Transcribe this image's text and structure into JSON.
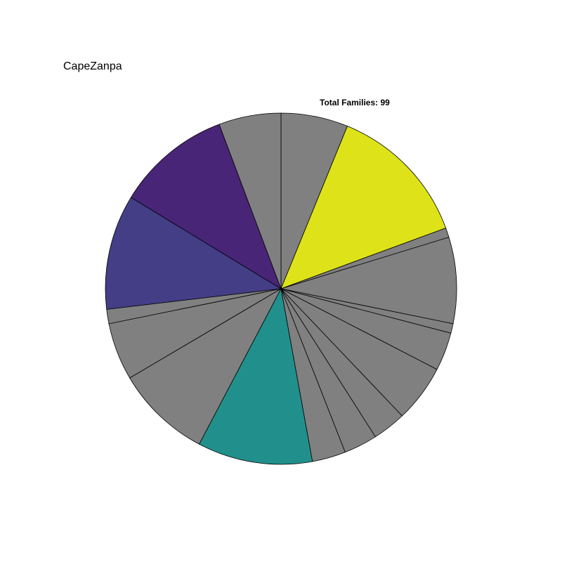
{
  "chart_data": {
    "type": "pie",
    "title": "CapeZanpa",
    "annotation": "Total Families: 99",
    "start": "12 o'clock",
    "direction": "clockwise",
    "values": [
      7,
      15,
      1,
      9,
      1,
      4,
      6,
      3.5,
      3.5,
      3.5,
      12,
      10,
      6,
      1.5,
      12,
      12,
      6.5
    ],
    "colors": [
      "#808080",
      "#dde318",
      "#808080",
      "#808080",
      "#808080",
      "#808080",
      "#808080",
      "#808080",
      "#808080",
      "#808080",
      "#21908c",
      "#808080",
      "#808080",
      "#808080",
      "#433e85",
      "#482576",
      "#808080"
    ]
  }
}
